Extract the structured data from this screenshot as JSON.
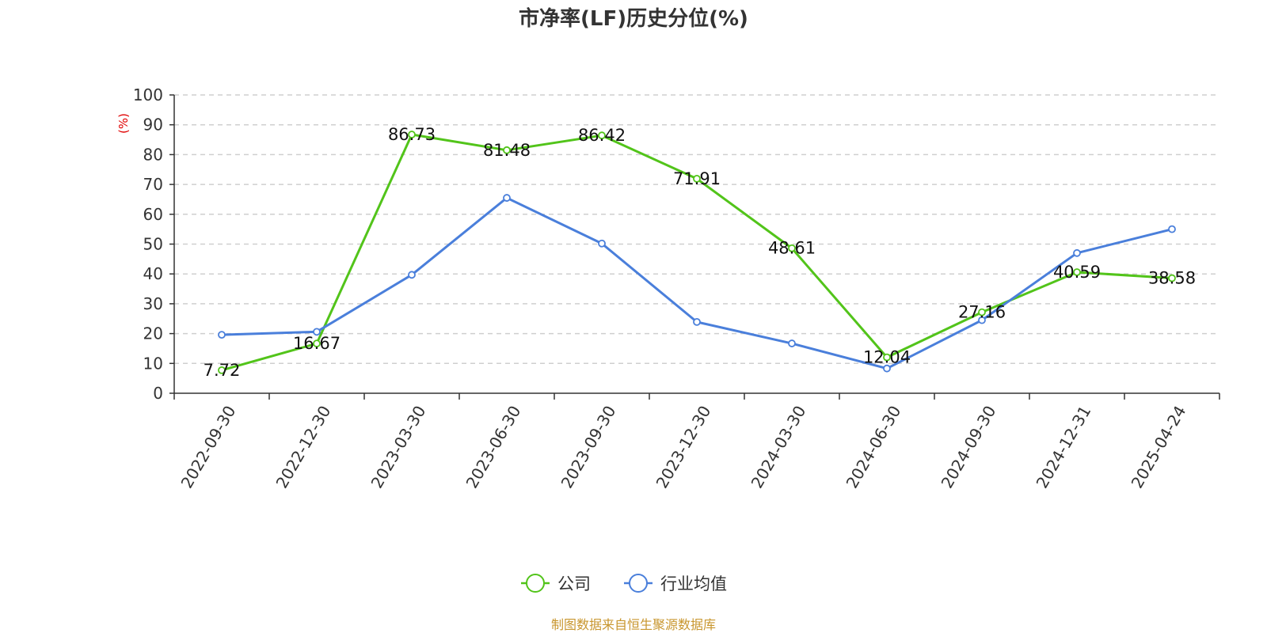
{
  "chart_data": {
    "type": "line",
    "title": "市净率(LF)历史分位(%)",
    "ylabel": "(%)",
    "xlabel": "",
    "ylim": [
      0,
      100
    ],
    "yticks": [
      0,
      10,
      20,
      30,
      40,
      50,
      60,
      70,
      80,
      90,
      100
    ],
    "grid": true,
    "legend_position": "bottom",
    "categories": [
      "2022-09-30",
      "2022-12-30",
      "2023-03-30",
      "2023-06-30",
      "2023-09-30",
      "2023-12-30",
      "2024-03-30",
      "2024-06-30",
      "2024-09-30",
      "2024-12-31",
      "2025-04-24"
    ],
    "series": [
      {
        "name": "公司",
        "color": "#52c41a",
        "values": [
          7.72,
          16.67,
          86.73,
          81.48,
          86.42,
          71.91,
          48.61,
          12.04,
          27.16,
          40.59,
          38.58
        ],
        "labels": [
          "7.72",
          "16.67",
          "86.73",
          "81.48",
          "86.42",
          "71.91",
          "48.61",
          "12.04",
          "27.16",
          "40.59",
          "38.58"
        ]
      },
      {
        "name": "行业均值",
        "color": "#4a7fdb",
        "values": [
          19.6,
          20.6,
          39.7,
          65.5,
          50.2,
          23.9,
          16.7,
          8.3,
          24.5,
          47.0,
          55.0
        ]
      }
    ]
  },
  "footer": {
    "source": "制图数据来自恒生聚源数据库"
  }
}
